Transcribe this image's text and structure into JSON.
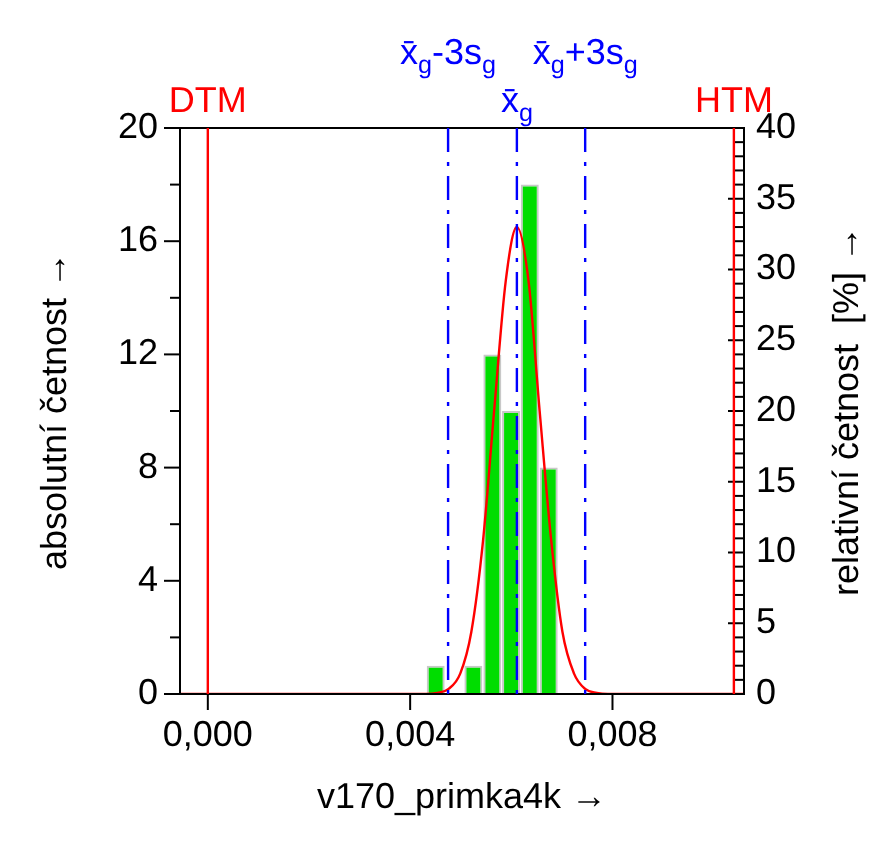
{
  "chart_data": {
    "type": "histogram",
    "xlabel": "v170_primka4k →",
    "ylabel": "absolutní četnost →",
    "y2label": "relativní četnost  [%] →",
    "bins": [
      0.00432,
      0.00469,
      0.00506,
      0.00544,
      0.00581,
      0.00618,
      0.00655,
      0.00693
    ],
    "values": [
      1,
      0,
      1,
      12,
      10,
      18,
      8
    ],
    "color": "#00dd00",
    "series": [
      {
        "type": "line",
        "color": "#ff0000",
        "x": [
          -0.00055,
          0.00431,
          0.00454,
          0.00476,
          0.00499,
          0.00521,
          0.00544,
          0.00566,
          0.00589,
          0.00611,
          0.00634,
          0.00656,
          0.00679,
          0.00701,
          0.00724,
          0.00746,
          0.00769,
          0.00791,
          0.0106
        ],
        "values": [
          0,
          0,
          0.04,
          0.18,
          0.72,
          2.2,
          5.4,
          10,
          14.6,
          16.5,
          14.6,
          10,
          5.4,
          2.2,
          0.72,
          0.18,
          0.04,
          0,
          0
        ]
      }
    ],
    "ref_lines": [
      {
        "axis": "x",
        "value": 0,
        "label": "DTM",
        "color": "#ff0000",
        "line_style": "solid"
      },
      {
        "axis": "x",
        "value": 0.0104,
        "label": "HTM",
        "color": "#ff0000",
        "line_style": "solid"
      },
      {
        "axis": "x",
        "value": 0.00611,
        "label": "x̄$_{g}$",
        "color": "#0000ff",
        "line_style": "dashed"
      },
      {
        "axis": "x",
        "value": 0.00475,
        "label": "x̄$_{g}$-3s$_{g}$",
        "color": "#0000ff",
        "line_style": "dashed"
      },
      {
        "axis": "x",
        "value": 0.00746,
        "label": "x̄$_{g}$+3s$_{g}$",
        "color": "#0000ff",
        "line_style": "dashed"
      }
    ],
    "xlim": [
      -0.00055,
      0.0106
    ],
    "xticks": [
      {
        "value": 0,
        "label": "0,000"
      },
      {
        "value": 0.004,
        "label": "0,004"
      },
      {
        "value": 0.008,
        "label": "0,008"
      }
    ],
    "ylim": [
      0,
      20
    ],
    "yticks": [
      0,
      {
        "value": 2,
        "label": null
      },
      4,
      {
        "value": 6,
        "label": null
      },
      8,
      {
        "value": 10,
        "label": null
      },
      12,
      {
        "value": 14,
        "label": null
      },
      16,
      {
        "value": 18,
        "label": null
      },
      20
    ],
    "y2lim": [
      0,
      40
    ],
    "y2ticks": [
      0,
      {
        "value": 1,
        "label": null
      },
      {
        "value": 2,
        "label": null
      },
      {
        "value": 3,
        "label": null
      },
      {
        "value": 4,
        "label": null
      },
      5,
      {
        "value": 6,
        "label": null
      },
      {
        "value": 7,
        "label": null
      },
      {
        "value": 8,
        "label": null
      },
      {
        "value": 9,
        "label": null
      },
      10,
      {
        "value": 11,
        "label": null
      },
      {
        "value": 12,
        "label": null
      },
      {
        "value": 13,
        "label": null
      },
      {
        "value": 14,
        "label": null
      },
      15,
      {
        "value": 16,
        "label": null
      },
      {
        "value": 17,
        "label": null
      },
      {
        "value": 18,
        "label": null
      },
      {
        "value": 19,
        "label": null
      },
      20,
      {
        "value": 21,
        "label": null
      },
      {
        "value": 22,
        "label": null
      },
      {
        "value": 23,
        "label": null
      },
      {
        "value": 24,
        "label": null
      },
      25,
      {
        "value": 26,
        "label": null
      },
      {
        "value": 27,
        "label": null
      },
      {
        "value": 28,
        "label": null
      },
      {
        "value": 29,
        "label": null
      },
      30,
      {
        "value": 31,
        "label": null
      },
      {
        "value": 32,
        "label": null
      },
      {
        "value": 33,
        "label": null
      },
      {
        "value": 34,
        "label": null
      },
      35,
      {
        "value": 36,
        "label": null
      },
      {
        "value": 37,
        "label": null
      },
      {
        "value": 38,
        "label": null
      },
      {
        "value": 39,
        "label": null
      },
      40
    ],
    "legend": false,
    "marker": "none"
  }
}
